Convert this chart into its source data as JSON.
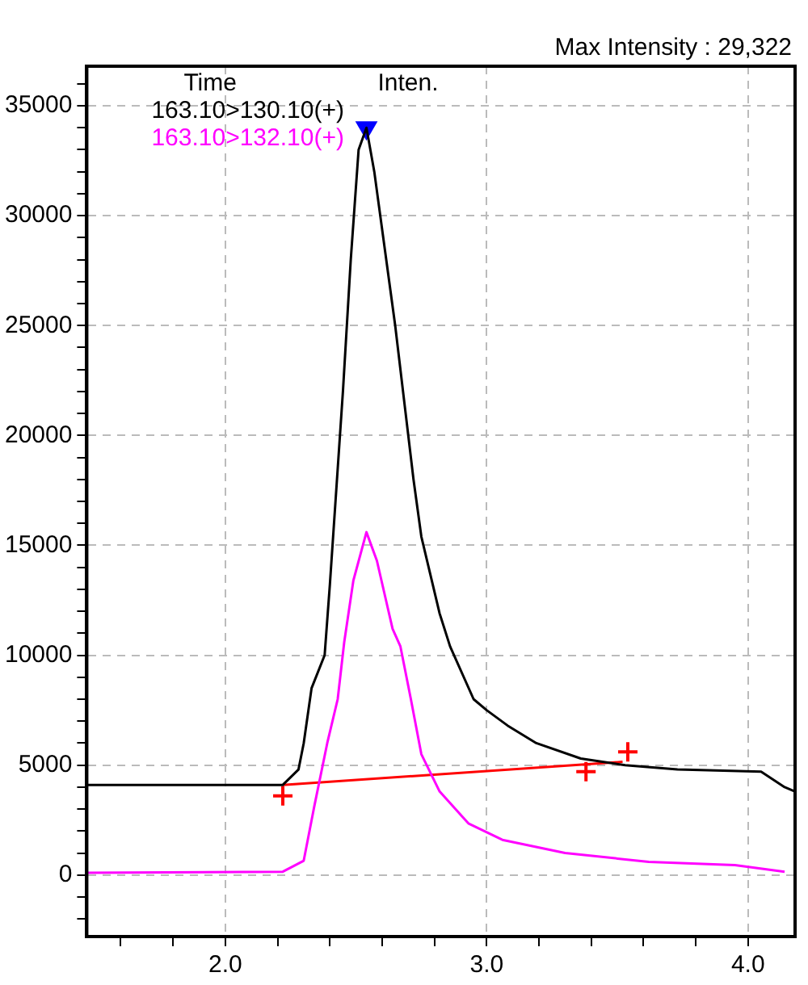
{
  "chart_data": {
    "type": "line",
    "annotations": [
      "Max Intensity :  29,322",
      "Time",
      "Inten."
    ],
    "xlim": [
      1.47,
      4.18
    ],
    "ylim": [
      -2800,
      36800
    ],
    "xticks": [
      {
        "value": 1.6,
        "label": null
      },
      {
        "value": 1.8,
        "label": null
      },
      {
        "value": 2.0,
        "label": "2.0"
      },
      {
        "value": 2.2,
        "label": null
      },
      {
        "value": 2.4,
        "label": null
      },
      {
        "value": 2.6,
        "label": null
      },
      {
        "value": 2.8,
        "label": null
      },
      {
        "value": 3.0,
        "label": "3.0"
      },
      {
        "value": 3.2,
        "label": null
      },
      {
        "value": 3.4,
        "label": null
      },
      {
        "value": 3.6,
        "label": null
      },
      {
        "value": 3.8,
        "label": null
      },
      {
        "value": 4.0,
        "label": "4.0"
      }
    ],
    "yticks": [
      {
        "value": -2000,
        "label": null
      },
      {
        "value": -1000,
        "label": null
      },
      0,
      {
        "value": 1000,
        "label": null
      },
      {
        "value": 2000,
        "label": null
      },
      {
        "value": 3000,
        "label": null
      },
      {
        "value": 4000,
        "label": null
      },
      5000,
      {
        "value": 6000,
        "label": null
      },
      {
        "value": 7000,
        "label": null
      },
      {
        "value": 8000,
        "label": null
      },
      {
        "value": 9000,
        "label": null
      },
      10000,
      {
        "value": 11000,
        "label": null
      },
      {
        "value": 12000,
        "label": null
      },
      {
        "value": 13000,
        "label": null
      },
      {
        "value": 14000,
        "label": null
      },
      15000,
      {
        "value": 16000,
        "label": null
      },
      {
        "value": 17000,
        "label": null
      },
      {
        "value": 18000,
        "label": null
      },
      {
        "value": 19000,
        "label": null
      },
      20000,
      {
        "value": 21000,
        "label": null
      },
      {
        "value": 22000,
        "label": null
      },
      {
        "value": 23000,
        "label": null
      },
      {
        "value": 24000,
        "label": null
      },
      25000,
      {
        "value": 26000,
        "label": null
      },
      {
        "value": 27000,
        "label": null
      },
      {
        "value": 28000,
        "label": null
      },
      {
        "value": 29000,
        "label": null
      },
      30000,
      {
        "value": 31000,
        "label": null
      },
      {
        "value": 32000,
        "label": null
      },
      {
        "value": 33000,
        "label": null
      },
      {
        "value": 34000,
        "label": null
      },
      35000,
      {
        "value": 36000,
        "label": null
      }
    ],
    "grid": true,
    "legend": "top left",
    "marker": "none",
    "line_style": "solid",
    "series": [
      {
        "name": "163.10>130.10(+)",
        "color": "#000000",
        "x": [
          1.47,
          2.22,
          2.28,
          2.3,
          2.33,
          2.38,
          2.4,
          2.45,
          2.48,
          2.51,
          2.54,
          2.57,
          2.65,
          2.72,
          2.75,
          2.82,
          2.86,
          2.95,
          3.0,
          3.08,
          3.19,
          3.36,
          3.53,
          3.73,
          4.05,
          4.14,
          4.18
        ],
        "values": [
          4100,
          4100,
          4800,
          6000,
          8500,
          10000,
          13200,
          22000,
          28000,
          33000,
          34000,
          32000,
          25000,
          18000,
          15400,
          11900,
          10400,
          8000,
          7500,
          6800,
          6000,
          5300,
          5000,
          4800,
          4700,
          4000,
          3800
        ]
      },
      {
        "name": "163.10>132.10(+)",
        "color": "#ff00ff",
        "x": [
          1.47,
          2.22,
          2.3,
          2.34,
          2.39,
          2.43,
          2.455,
          2.49,
          2.54,
          2.58,
          2.64,
          2.67,
          2.71,
          2.75,
          2.82,
          2.93,
          3.06,
          3.3,
          3.62,
          3.95,
          4.14
        ],
        "values": [
          100,
          150,
          650,
          3100,
          6000,
          8000,
          10600,
          13400,
          15600,
          14300,
          11200,
          10400,
          8000,
          5500,
          3800,
          2350,
          1600,
          1000,
          600,
          450,
          150
        ]
      },
      {
        "type": "line",
        "color": "#ff0000",
        "x": [
          2.22,
          3.52
        ],
        "values": [
          4100,
          5150
        ]
      },
      {
        "type": "scatter",
        "marker": "triangle",
        "color": "#0000ff",
        "x": [
          2.54
        ],
        "values": [
          34000
        ]
      },
      {
        "type": "scatter",
        "marker": "cross",
        "color": "#ff0000",
        "x": [
          2.22,
          3.38,
          3.54
        ],
        "values": [
          3600,
          4700,
          5600
        ]
      }
    ]
  }
}
